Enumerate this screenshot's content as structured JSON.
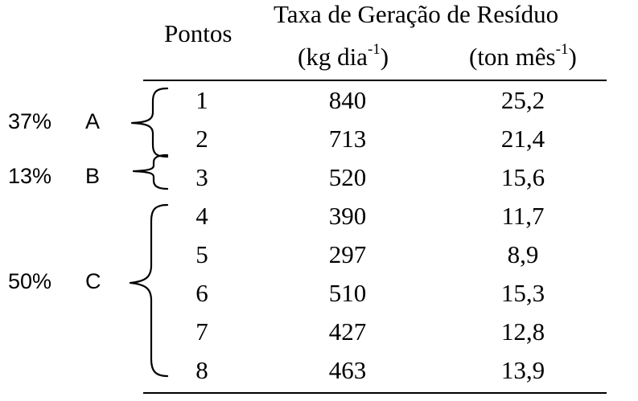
{
  "header": {
    "col_pontos": "Pontos",
    "col_taxa": "Taxa de Geração de Resíduo",
    "unit_kg_base": "(kg dia",
    "unit_kg_exp": "-1",
    "unit_kg_close": ")",
    "unit_ton_base": "(ton mês",
    "unit_ton_exp": "-1",
    "unit_ton_close": ")"
  },
  "rows": [
    {
      "ponto": "1",
      "kg": "840",
      "ton": "25,2"
    },
    {
      "ponto": "2",
      "kg": "713",
      "ton": "21,4"
    },
    {
      "ponto": "3",
      "kg": "520",
      "ton": "15,6"
    },
    {
      "ponto": "4",
      "kg": "390",
      "ton": "11,7"
    },
    {
      "ponto": "5",
      "kg": "297",
      "ton": "8,9"
    },
    {
      "ponto": "6",
      "kg": "510",
      "ton": "15,3"
    },
    {
      "ponto": "7",
      "kg": "427",
      "ton": "12,8"
    },
    {
      "ponto": "8",
      "kg": "463",
      "ton": "13,9"
    }
  ],
  "groups": [
    {
      "percent": "37%",
      "letter": "A"
    },
    {
      "percent": "13%",
      "letter": "B"
    },
    {
      "percent": "50%",
      "letter": "C"
    }
  ]
}
